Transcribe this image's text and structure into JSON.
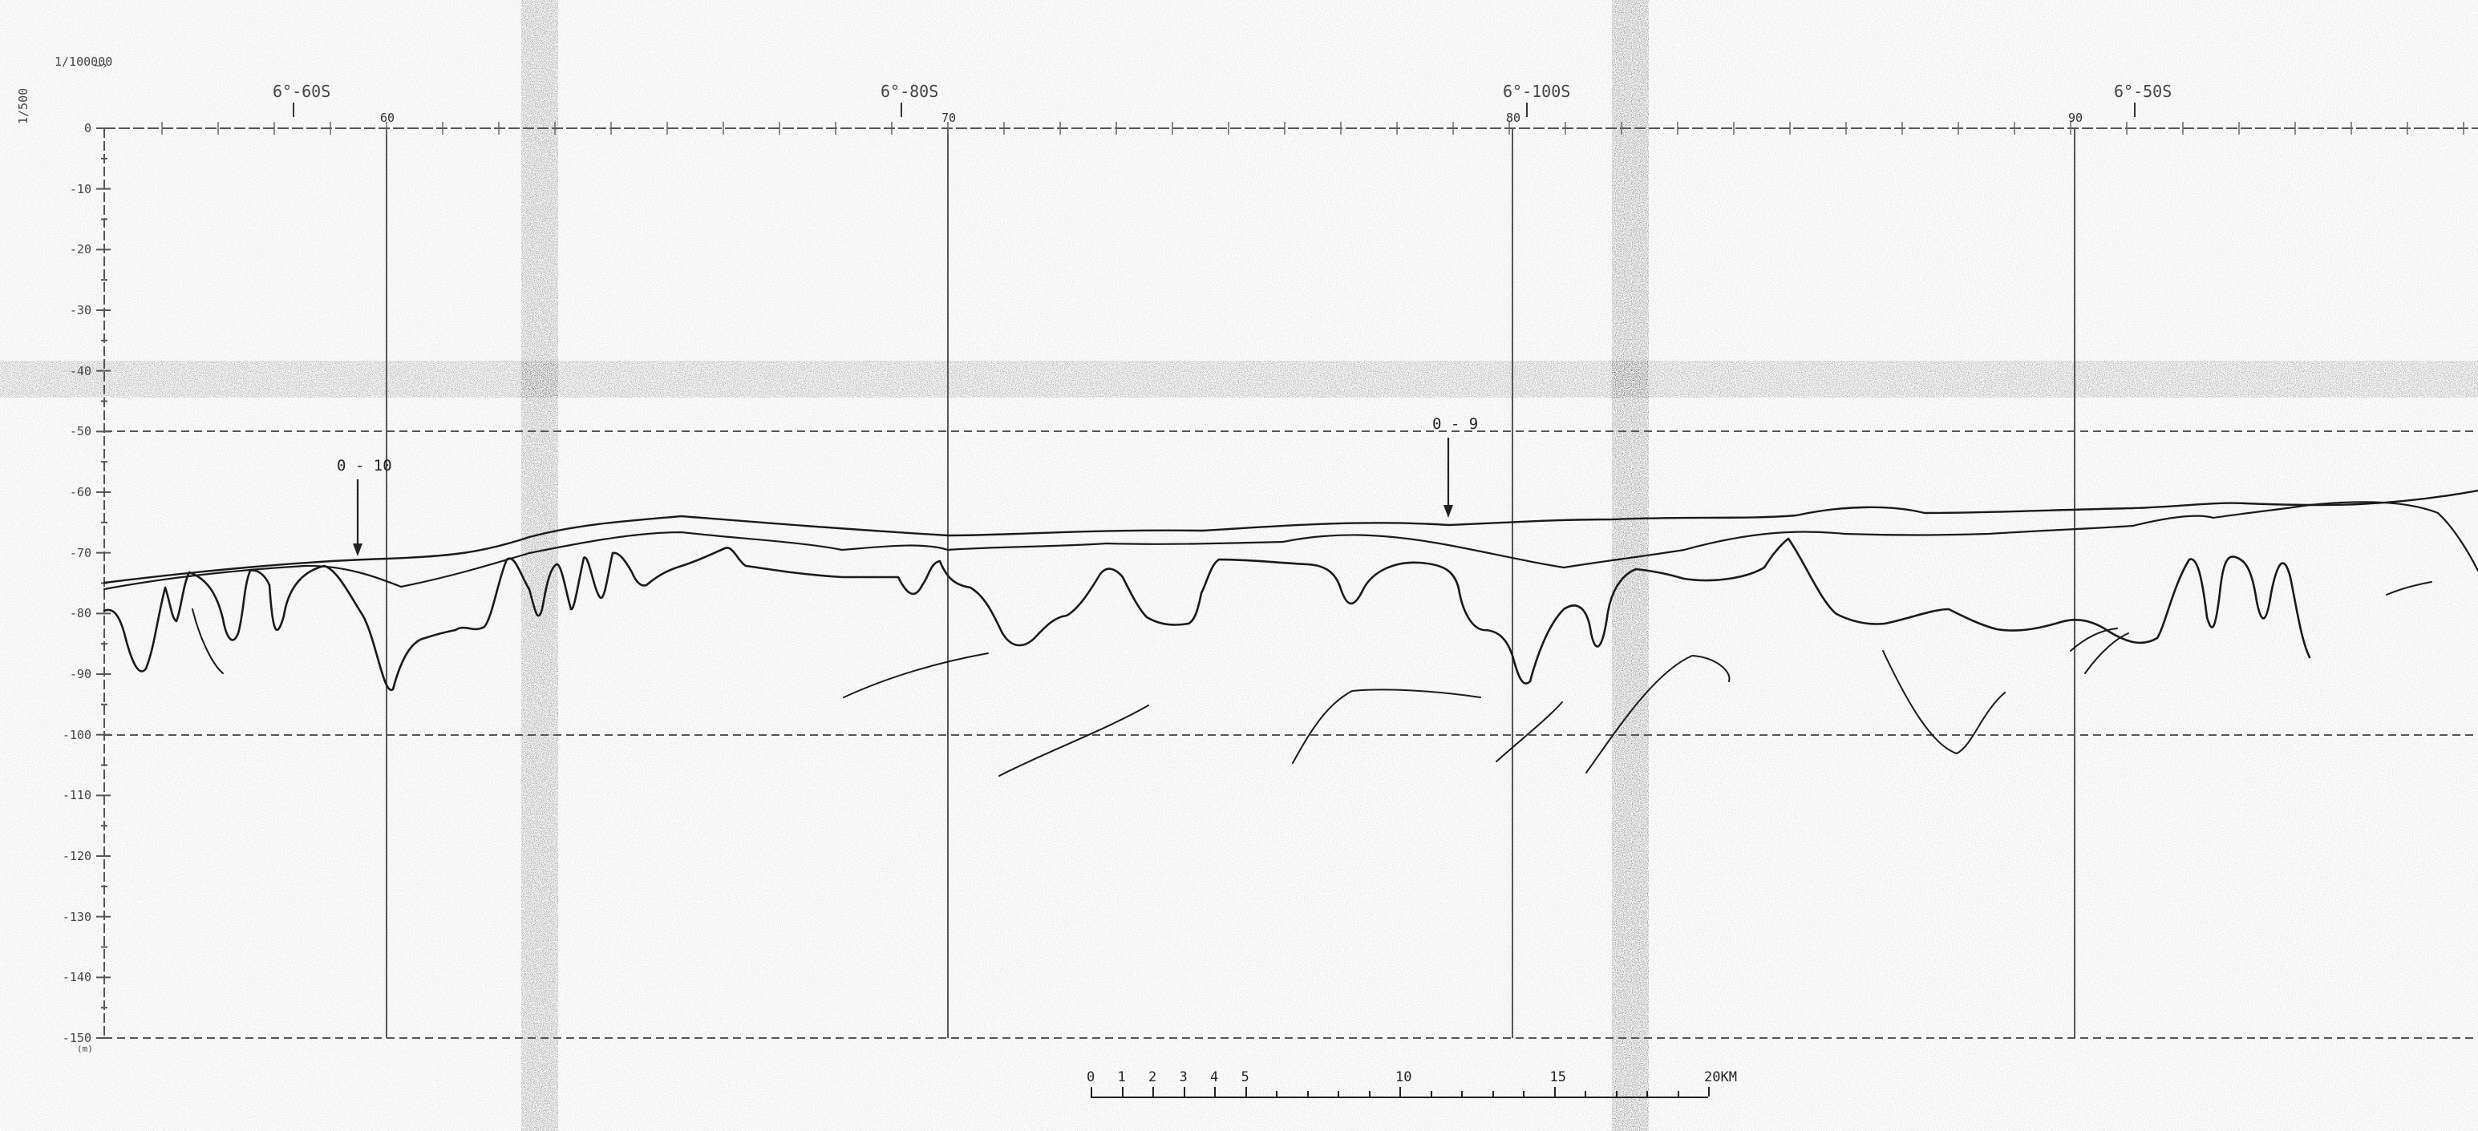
{
  "scale": {
    "horizontal": "1/100000",
    "vertical": "1/500"
  },
  "depth_axis": {
    "unit": "(m)",
    "ticks": [
      "0",
      "-10",
      "-20",
      "-30",
      "-40",
      "-50",
      "-60",
      "-70",
      "-80",
      "-90",
      "-100",
      "-110",
      "-120",
      "-130",
      "-140",
      "-150"
    ]
  },
  "distance_gridlines": [
    "60",
    "70",
    "80",
    "90"
  ],
  "stations": [
    "6°-60S",
    "6°-80S",
    "6°-100S",
    "6°-50S"
  ],
  "cores": [
    {
      "id": "core-o10",
      "label": "0 - 10"
    },
    {
      "id": "core-o9",
      "label": "0 - 9"
    }
  ],
  "km_scale": {
    "labels": [
      "0",
      "1",
      "2",
      "3",
      "4",
      "5",
      "10",
      "15",
      "20KM"
    ]
  },
  "colors": {
    "ink": "#1a1a1a",
    "grid": "#555555",
    "paper": "#ffffff",
    "stain": "#9a9a9a"
  }
}
